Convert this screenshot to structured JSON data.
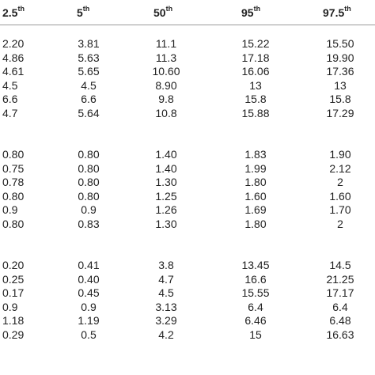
{
  "header": {
    "columns": [
      {
        "base": "2.5",
        "sup": "th"
      },
      {
        "base": "5",
        "sup": "th"
      },
      {
        "base": "50",
        "sup": "th"
      },
      {
        "base": "95",
        "sup": "th"
      },
      {
        "base": "97.5",
        "sup": "th"
      }
    ]
  },
  "groups": [
    {
      "rows": [
        [
          "2.20",
          "3.81",
          "11.1",
          "15.22",
          "15.50"
        ],
        [
          "4.86",
          "5.63",
          "11.3",
          "17.18",
          "19.90"
        ],
        [
          "4.61",
          "5.65",
          "10.60",
          "16.06",
          "17.36"
        ],
        [
          "4.5",
          "4.5",
          "8.90",
          "13",
          "13"
        ],
        [
          "6.6",
          "6.6",
          "9.8",
          "15.8",
          "15.8"
        ],
        [
          "4.7",
          "5.64",
          "10.8",
          "15.88",
          "17.29"
        ]
      ]
    },
    {
      "rows": [
        [
          "0.80",
          "0.80",
          "1.40",
          "1.83",
          "1.90"
        ],
        [
          "0.75",
          "0.80",
          "1.40",
          "1.99",
          "2.12"
        ],
        [
          "0.78",
          "0.80",
          "1.30",
          "1.80",
          "2"
        ],
        [
          "0.80",
          "0.80",
          "1.25",
          "1.60",
          "1.60"
        ],
        [
          "0.9",
          "0.9",
          "1.26",
          "1.69",
          "1.70"
        ],
        [
          "0.80",
          "0.83",
          "1.30",
          "1.80",
          "2"
        ]
      ]
    },
    {
      "rows": [
        [
          "0.20",
          "0.41",
          "3.8",
          "13.45",
          "14.5"
        ],
        [
          "0.25",
          "0.40",
          "4.7",
          "16.6",
          "21.25"
        ],
        [
          "0.17",
          "0.45",
          "4.5",
          "15.55",
          "17.17"
        ],
        [
          "0.9",
          "0.9",
          "3.13",
          "6.4",
          "6.4"
        ],
        [
          "1.18",
          "1.19",
          "3.29",
          "6.46",
          "6.48"
        ],
        [
          "0.29",
          "0.5",
          "4.2",
          "15",
          "16.63"
        ]
      ]
    }
  ]
}
